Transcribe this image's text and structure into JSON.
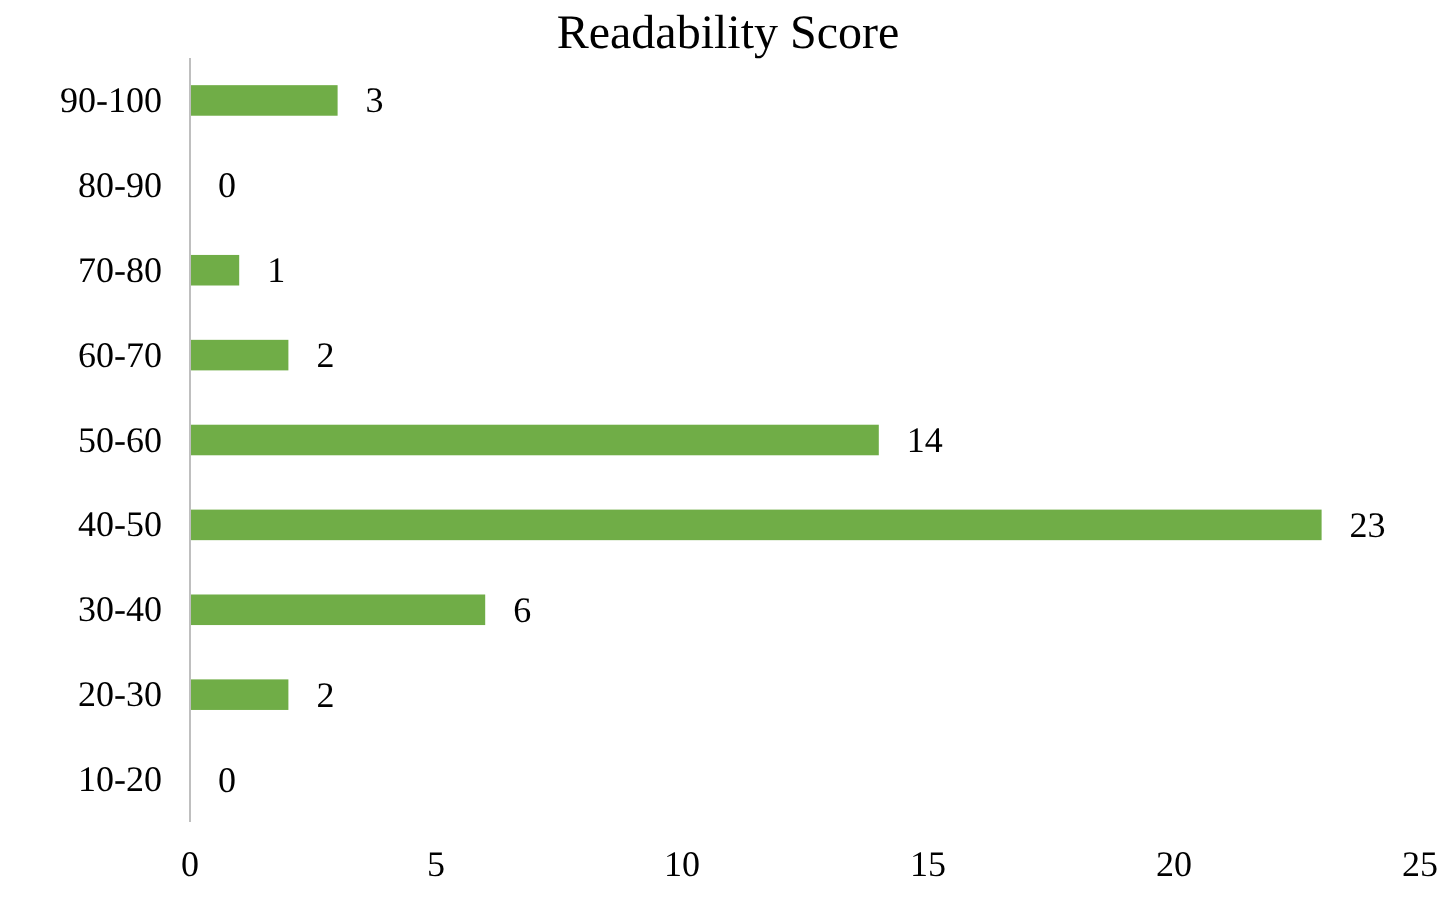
{
  "chart_data": {
    "type": "bar",
    "orientation": "horizontal",
    "title": "Readability Score",
    "categories": [
      "90-100",
      "80-90",
      "70-80",
      "60-70",
      "50-60",
      "40-50",
      "30-40",
      "20-30",
      "10-20"
    ],
    "values": [
      3,
      0,
      1,
      2,
      14,
      23,
      6,
      2,
      0
    ],
    "color": "#70ad47",
    "xlim": [
      0,
      25
    ],
    "xticks": [
      0,
      5,
      10,
      15,
      20,
      25
    ],
    "data_labels": true,
    "grid": false
  }
}
